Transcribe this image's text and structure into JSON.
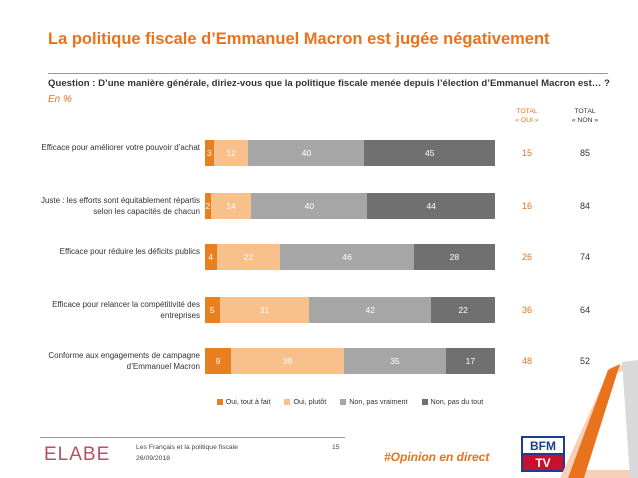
{
  "header": {
    "title": "La politique fiscale d’Emmanuel Macron est jugée négativement",
    "question": "Question : D’une manière générale, diriez-vous que la politique fiscale menée depuis l’élection d’Emmanuel Macron est… ?",
    "unit": "En %"
  },
  "columns": {
    "oui_line1": "TOTAL",
    "oui_line2": "« OUI »",
    "non_line1": "TOTAL",
    "non_line2": "« NON »"
  },
  "chart_data": {
    "type": "bar",
    "orientation": "horizontal",
    "stacked": true,
    "categories": [
      "Efficace pour améliorer votre pouvoir d’achat",
      "Juste : les efforts sont équitablement répartis selon les capacités de chacun",
      "Efficace pour réduire les déficits publics",
      "Efficace pour relancer la compétitivité des entreprises",
      "Conforme aux engagements de campagne d’Emmanuel Macron"
    ],
    "series": [
      {
        "name": "Oui, tout à fait",
        "color": "#e8801f",
        "values": [
          3,
          2,
          4,
          5,
          9
        ]
      },
      {
        "name": "Oui, plutôt",
        "color": "#f8c08a",
        "values": [
          12,
          14,
          22,
          31,
          39
        ]
      },
      {
        "name": "Non, pas vraiment",
        "color": "#a6a6a6",
        "values": [
          40,
          40,
          46,
          42,
          35
        ]
      },
      {
        "name": "Non, pas du tout",
        "color": "#707070",
        "values": [
          45,
          44,
          28,
          22,
          17
        ]
      }
    ],
    "totals_oui": [
      15,
      16,
      26,
      36,
      48
    ],
    "totals_non": [
      85,
      84,
      74,
      64,
      52
    ],
    "xlim": [
      0,
      100
    ],
    "legend_position": "bottom"
  },
  "footer": {
    "logo": "ELABE",
    "study": "Les Français et la politique fiscale",
    "date": "26/09/2018",
    "page": "15",
    "hashtag": "#Opinion en direct",
    "partner_logo_text_1": "BFM",
    "partner_logo_text_2": "TV"
  },
  "colors": {
    "accent": "#e8731c",
    "brand_elabe": "#b8505f"
  }
}
